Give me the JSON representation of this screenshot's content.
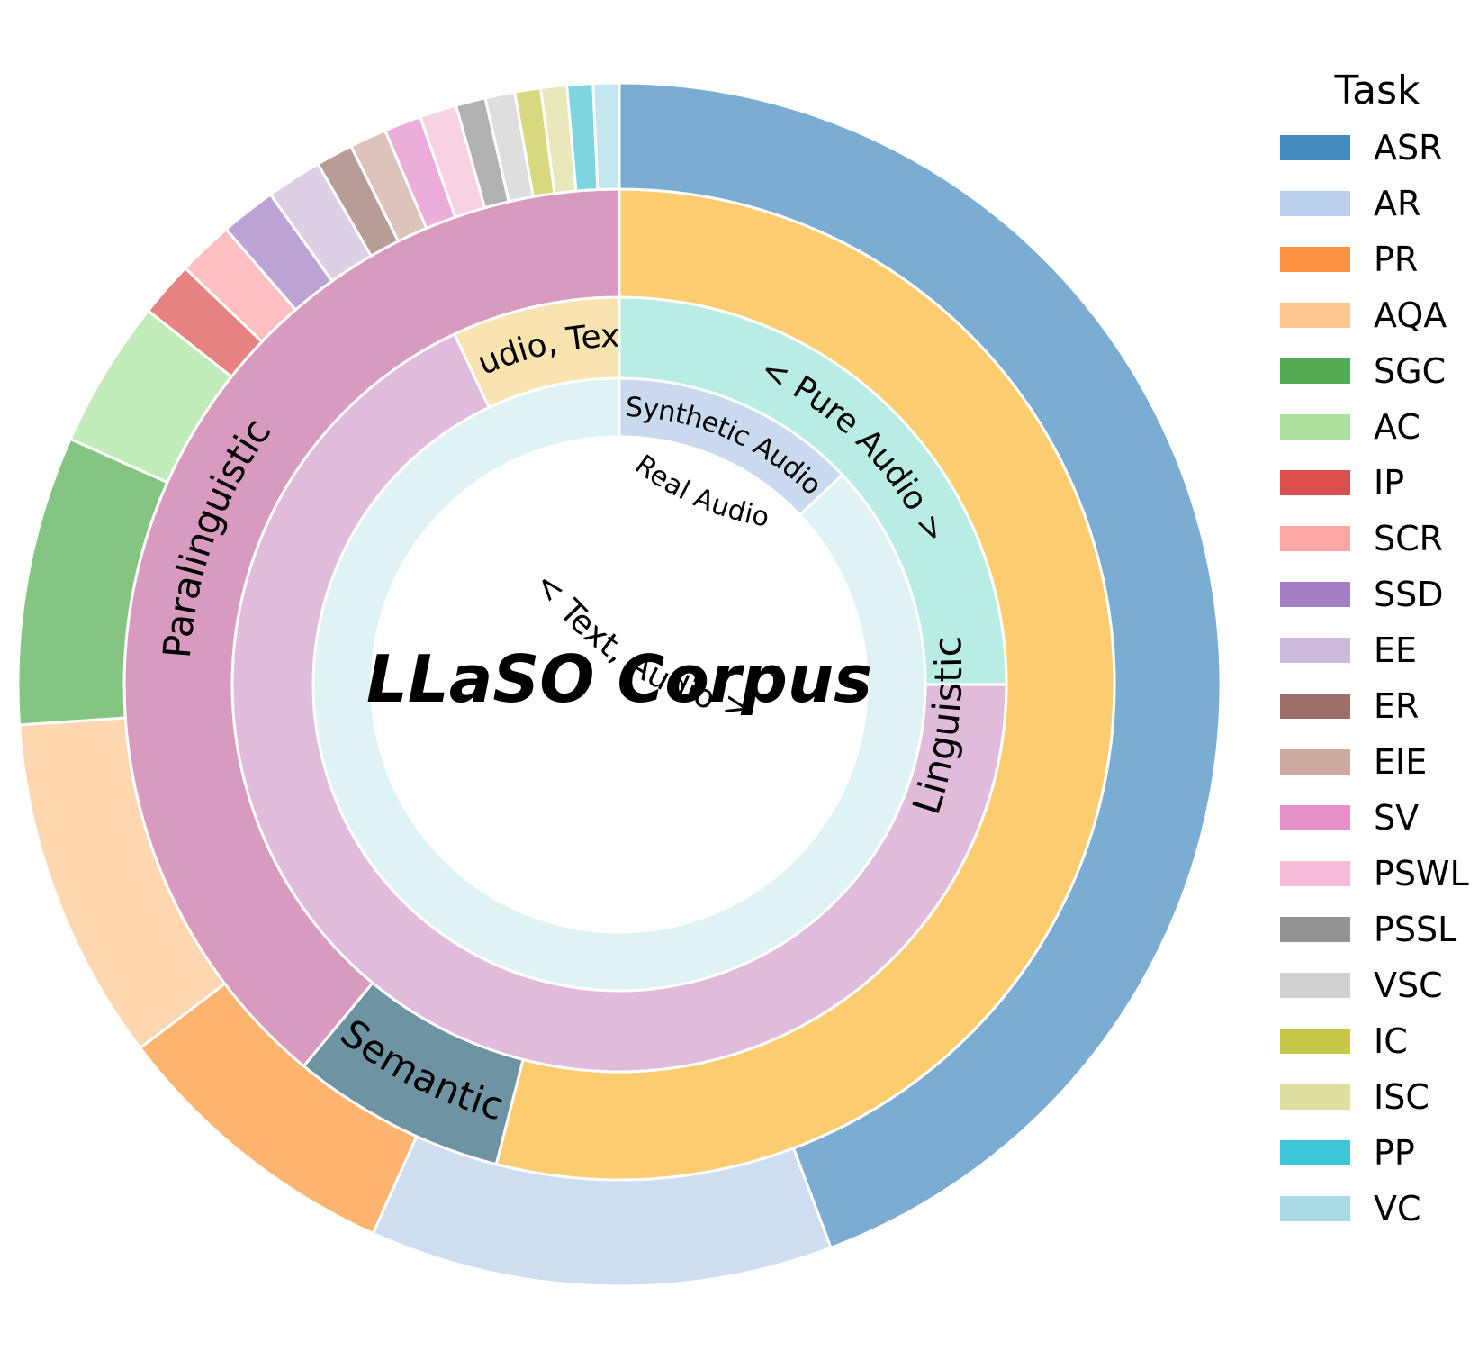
{
  "chart_data": {
    "type": "pie",
    "title": "LLaSO Corpus",
    "legend": {
      "title": "Task",
      "position": "right"
    },
    "rings": [
      {
        "level": "inner",
        "segments": [
          {
            "label": "Synthetic Audio",
            "value": 13,
            "color": "#cadaee"
          },
          {
            "label": "Real Audio",
            "value": 87,
            "color": "#e0f3f4"
          }
        ]
      },
      {
        "level": "middle",
        "segments": [
          {
            "label": "< Pure Audio >",
            "value": 25,
            "color": "#b9ece3"
          },
          {
            "label": "< Text, Audio >",
            "value": 68,
            "color": "#e0bbdc"
          },
          {
            "label": "< Audio, Text >",
            "value": 7,
            "color": "#f8e3b1"
          }
        ]
      },
      {
        "level": "outer",
        "segments": [
          {
            "label": "Linguistic",
            "value": 54,
            "color": "#fccd70"
          },
          {
            "label": "Semantic",
            "value": 7,
            "color": "#6e93a3"
          },
          {
            "label": "Paralinguistic",
            "value": 39,
            "color": "#d99ac0"
          }
        ]
      }
    ],
    "tasks": [
      {
        "label": "ASR",
        "value": 44.5,
        "color": "#7bacd2",
        "legend_color": "#448bc0"
      },
      {
        "label": "AR",
        "value": 12.5,
        "color": "#cedef0",
        "legend_color": "#bacfea"
      },
      {
        "label": "PR",
        "value": 8.0,
        "color": "#fdb46f",
        "legend_color": "#fd9343"
      },
      {
        "label": "AQA",
        "value": 9.3,
        "color": "#fed6b0",
        "legend_color": "#fec692"
      },
      {
        "label": "SGC",
        "value": 7.8,
        "color": "#83c581",
        "legend_color": "#53ac53"
      },
      {
        "label": "AC",
        "value": 4.0,
        "color": "#c2ebba",
        "legend_color": "#ade19f"
      },
      {
        "label": "IP",
        "value": 1.5,
        "color": "#e68282",
        "legend_color": "#dd4f4f"
      },
      {
        "label": "SCR",
        "value": 1.5,
        "color": "#fdbfbf",
        "legend_color": "#fda8a6"
      },
      {
        "label": "SSD",
        "value": 1.5,
        "color": "#bca2d5",
        "legend_color": "#a47ec5"
      },
      {
        "label": "EE",
        "value": 1.5,
        "color": "#ddd0e6",
        "legend_color": "#cdb9d9"
      },
      {
        "label": "ER",
        "value": 1.0,
        "color": "#b89c97",
        "legend_color": "#9e6f66"
      },
      {
        "label": "EIE",
        "value": 1.0,
        "color": "#dcc4bd",
        "legend_color": "#cea99f"
      },
      {
        "label": "SV",
        "value": 1.0,
        "color": "#ecadda",
        "legend_color": "#e68fc9"
      },
      {
        "label": "PSWL",
        "value": 1.0,
        "color": "#f8d1e3",
        "legend_color": "#f7bcd8"
      },
      {
        "label": "PSSL",
        "value": 0.8,
        "color": "#b2b2b2",
        "legend_color": "#939393"
      },
      {
        "label": "VSC",
        "value": 0.8,
        "color": "#dedede",
        "legend_color": "#d0d0d0"
      },
      {
        "label": "IC",
        "value": 0.7,
        "color": "#d7d87f",
        "legend_color": "#c5c849"
      },
      {
        "label": "ISC",
        "value": 0.7,
        "color": "#e8e8bb",
        "legend_color": "#dee0a0"
      },
      {
        "label": "PP",
        "value": 0.7,
        "color": "#7dd5e2",
        "legend_color": "#3dc7d6"
      },
      {
        "label": "VC",
        "value": 0.7,
        "color": "#c4e6ee",
        "legend_color": "#a9dae4"
      }
    ]
  }
}
